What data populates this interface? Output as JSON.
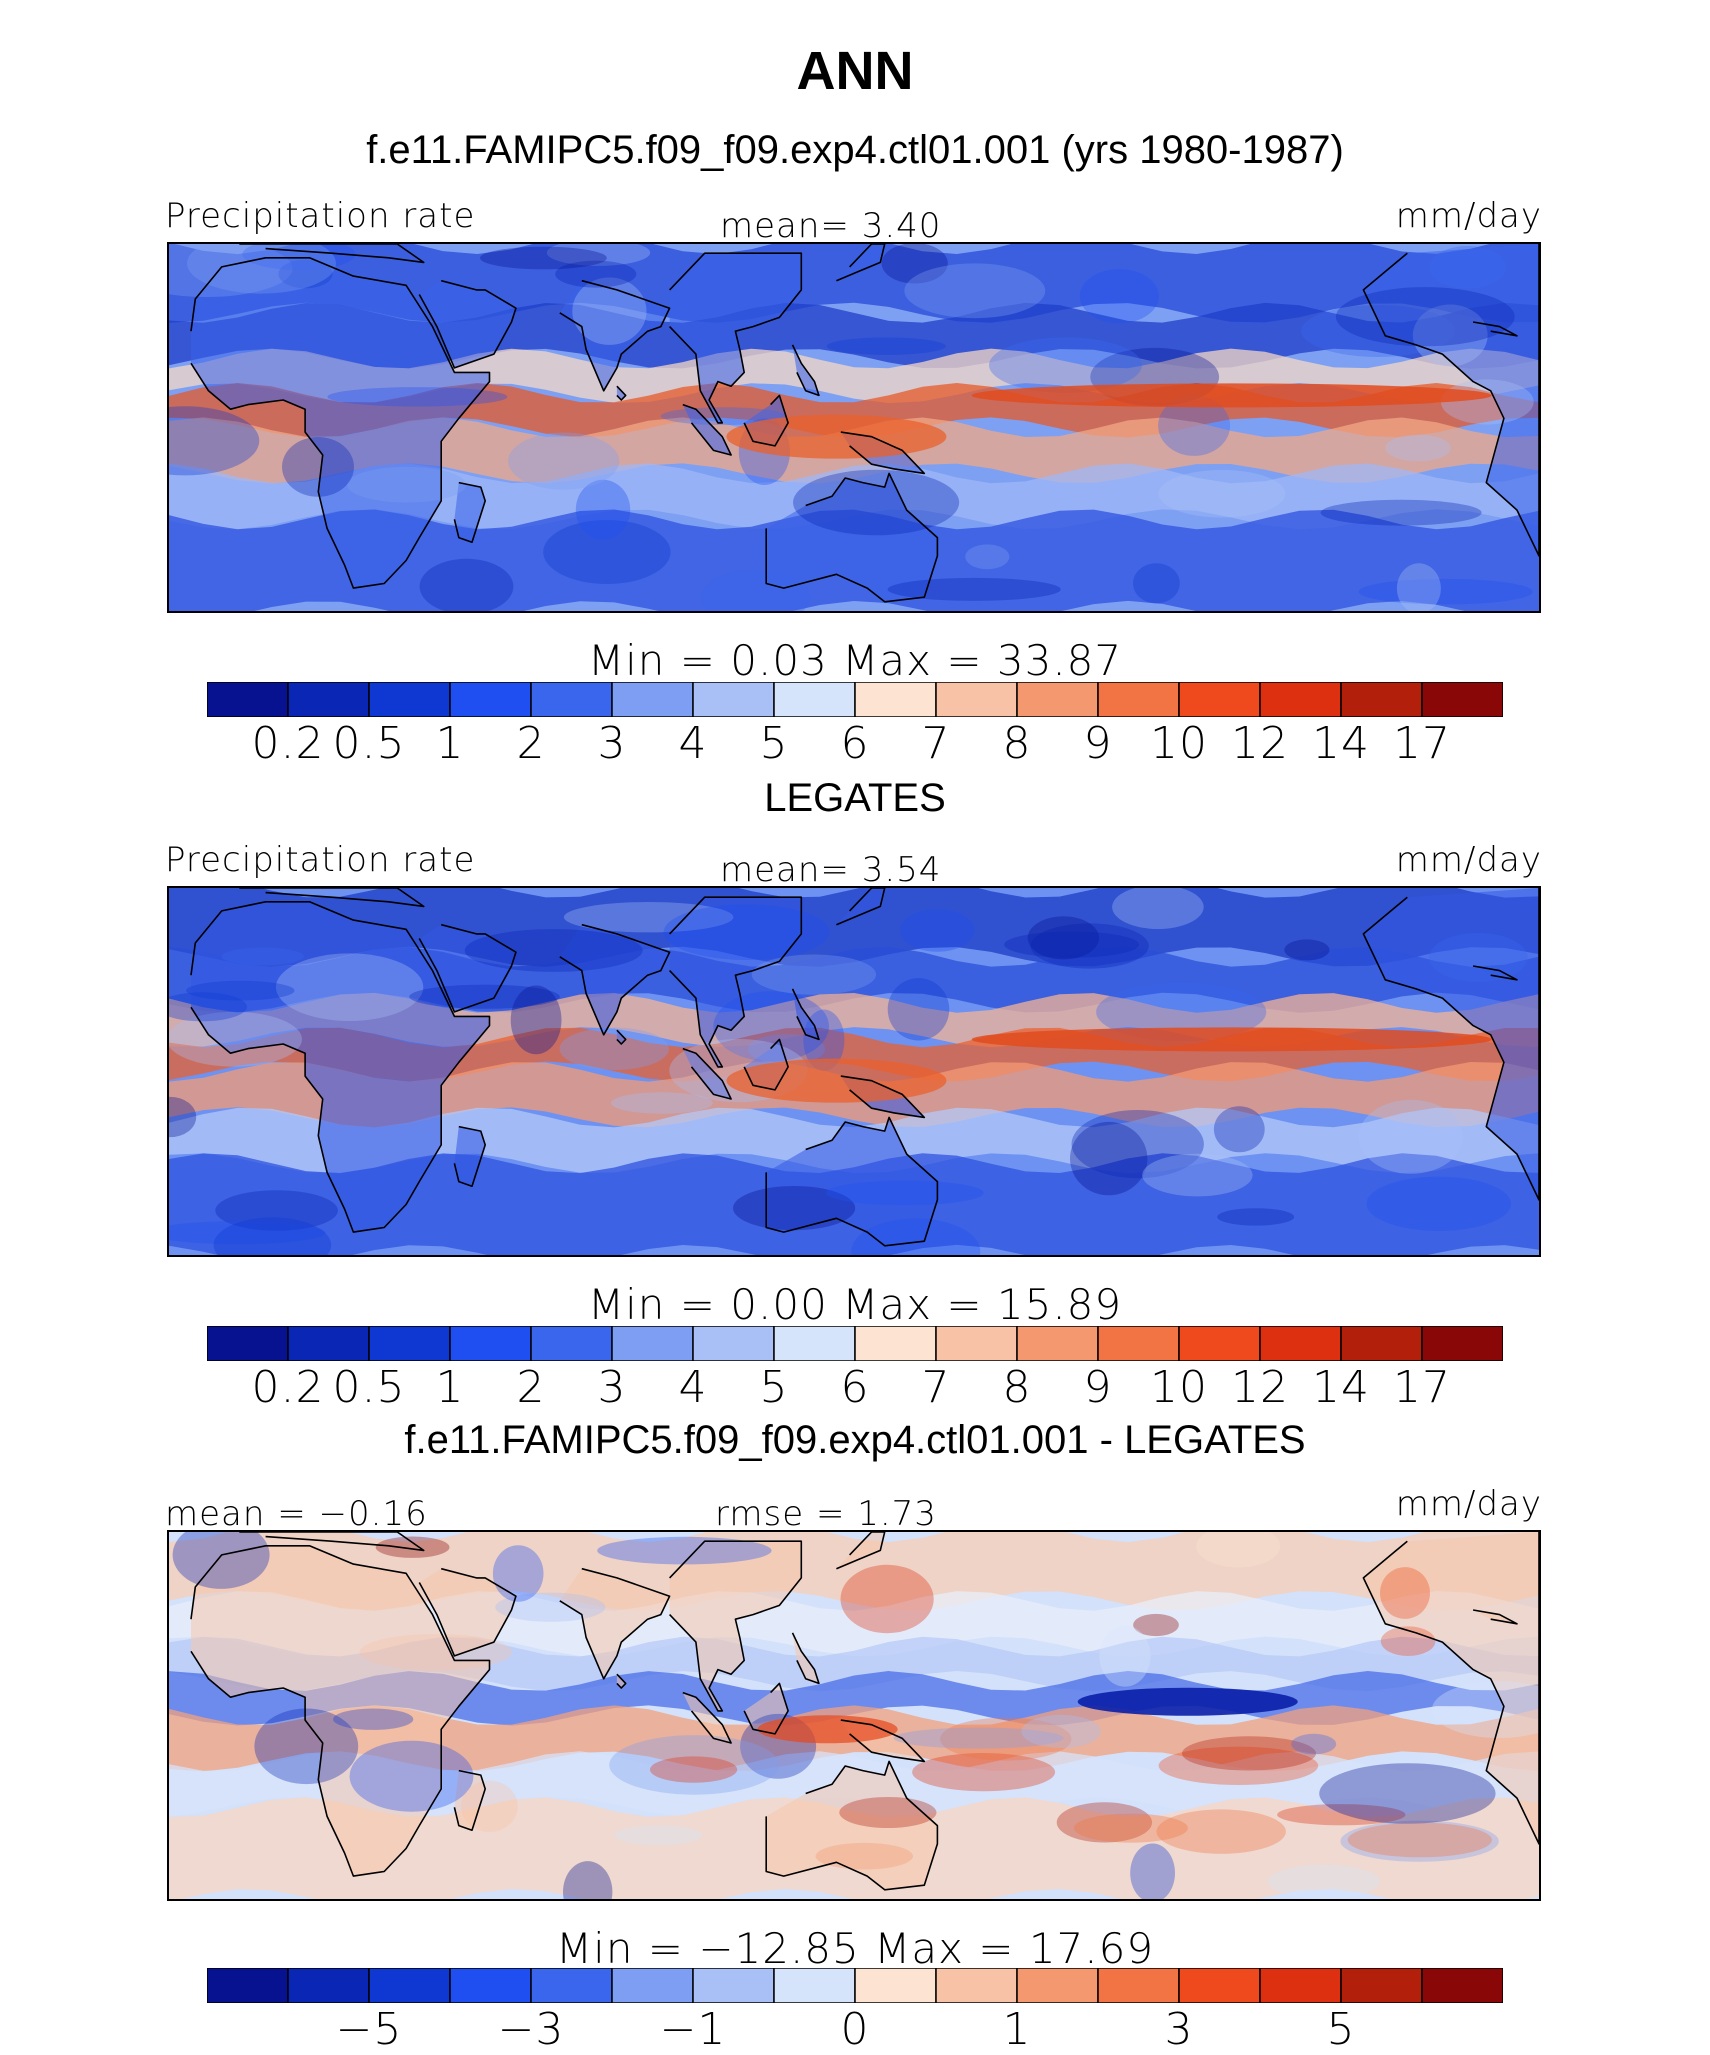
{
  "title": "ANN",
  "panels": [
    {
      "id": "model",
      "heading": "f.e11.FAMIPC5.f09_f09.exp4.ctl01.001 (yrs 1980-1987)",
      "left_label": "Precipitation  rate",
      "center_label": "mean=    3.40",
      "right_label": "mm/day",
      "minmax": "Min  =     0.03  Max  =    33.87",
      "map_name": "model-precipitation-map",
      "land_color": "#3b63ea",
      "ocean_color": "#7ea0f3",
      "bands": [
        {
          "lat": 30,
          "color": "#2649d8"
        },
        {
          "lat": 20,
          "color": "#1f3ec9"
        },
        {
          "lat": 10,
          "color": "#f6d8c4"
        },
        {
          "lat": 5,
          "color": "#e65a2a"
        },
        {
          "lat": -5,
          "color": "#f2a886"
        },
        {
          "lat": -15,
          "color": "#9fb7f7"
        },
        {
          "lat": -25,
          "color": "#2d52df"
        }
      ],
      "scale": "levels"
    },
    {
      "id": "obs",
      "heading": "LEGATES",
      "left_label": "Precipitation  rate",
      "center_label": "mean=    3.54",
      "right_label": "mm/day",
      "minmax": "Min  =     0.00  Max  =    15.89",
      "map_name": "observed-precipitation-map",
      "land_color": "#3358e3",
      "ocean_color": "#6e92f1",
      "bands": [
        {
          "lat": 30,
          "color": "#1c3bc4"
        },
        {
          "lat": 20,
          "color": "#2a4ed8"
        },
        {
          "lat": 10,
          "color": "#f4b394"
        },
        {
          "lat": 5,
          "color": "#ea6030"
        },
        {
          "lat": -5,
          "color": "#f39a74"
        },
        {
          "lat": -15,
          "color": "#b4c8f8"
        },
        {
          "lat": -25,
          "color": "#2d52df"
        }
      ],
      "scale": "levels"
    },
    {
      "id": "diff",
      "heading": "f.e11.FAMIPC5.f09_f09.exp4.ctl01.001 - LEGATES",
      "left_label": "mean  =   −0.16",
      "center_label": "rmse  =    1.73",
      "right_label": "mm/day",
      "minmax": "Min  =  −12.85  Max  =    17.69",
      "map_name": "difference-precipitation-map",
      "land_color": "#f6c7ac",
      "ocean_color": "#d3e1fb",
      "bands": [
        {
          "lat": 30,
          "color": "#f7cdb4"
        },
        {
          "lat": 20,
          "color": "#e8eef9"
        },
        {
          "lat": 10,
          "color": "#b7c9f7"
        },
        {
          "lat": 5,
          "color": "#4a6ee8"
        },
        {
          "lat": -5,
          "color": "#f2a07c"
        },
        {
          "lat": -15,
          "color": "#d7e3fb"
        },
        {
          "lat": -25,
          "color": "#f8d6c2"
        }
      ],
      "scale": "diff"
    }
  ],
  "colorbar_colors": [
    "#06128f",
    "#0a26b4",
    "#0f38d2",
    "#1f4ff0",
    "#3a66ee",
    "#7d9ef2",
    "#a9c0f7",
    "#d6e4fb",
    "#fde4d2",
    "#f8c2a6",
    "#f4996f",
    "#f27343",
    "#ee4a1e",
    "#dc3010",
    "#b2200c",
    "#8a0707"
  ],
  "ticks_levels": [
    "0.2",
    "0.5",
    "1",
    "2",
    "3",
    "4",
    "5",
    "6",
    "7",
    "8",
    "9",
    "10",
    "12",
    "14",
    "17"
  ],
  "ticks_diff": [
    "−5",
    "−3",
    "−1",
    "0",
    "1",
    "3",
    "5"
  ]
}
